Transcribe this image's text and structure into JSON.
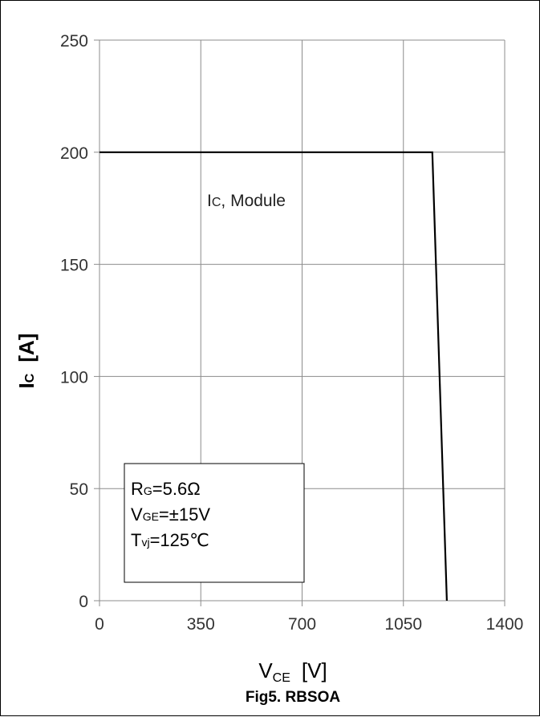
{
  "chart_data": {
    "type": "line",
    "title": "",
    "xlabel": {
      "main": "V",
      "sub": "CE",
      "unit": "[V]"
    },
    "ylabel": {
      "main": "I",
      "sub": "C",
      "unit": "[A]"
    },
    "xlim": [
      0,
      1400
    ],
    "ylim": [
      0,
      250
    ],
    "x_ticks": [
      0,
      350,
      700,
      1050,
      1400
    ],
    "y_ticks": [
      0,
      50,
      100,
      150,
      200,
      250
    ],
    "grid": true,
    "series": [
      {
        "points": [
          [
            0,
            200
          ],
          [
            1150,
            200
          ],
          [
            1200,
            0
          ]
        ]
      }
    ],
    "annotation": {
      "main": "I",
      "sub": "C",
      "rest": ", Module"
    },
    "conditions": [
      {
        "main": "R",
        "sub": "G",
        "rest": "=5.6Ω"
      },
      {
        "main": "V",
        "sub": "GE",
        "rest": "=±15V"
      },
      {
        "main": "T",
        "sub": "vj",
        "rest": "=125℃"
      }
    ],
    "caption": "Fig5. RBSOA"
  }
}
